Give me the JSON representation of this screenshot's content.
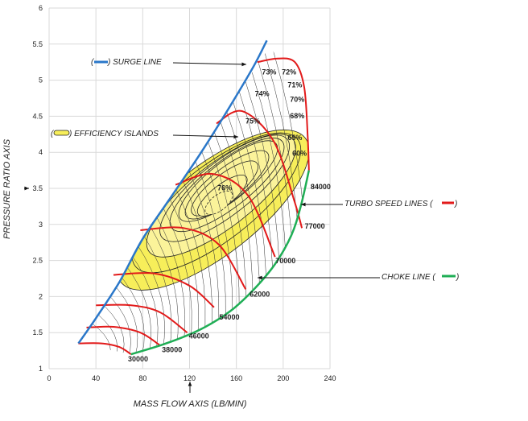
{
  "chart_data": {
    "type": "line",
    "title": "",
    "xlabel": "MASS FLOW AXIS (LB/MIN)",
    "ylabel": "PRESSURE RATIO AXIS",
    "xlim": [
      0,
      240
    ],
    "ylim": [
      1,
      6
    ],
    "x_ticks": [
      "0",
      "40",
      "80",
      "120",
      "160",
      "200",
      "240"
    ],
    "y_ticks": [
      "1",
      "1.5",
      "2",
      "2.5",
      "3",
      "3.5",
      "4",
      "4.5",
      "5",
      "5.5",
      "6"
    ],
    "grid": true,
    "colors": {
      "surge": "#2a77c9",
      "choke": "#1fae55",
      "speed": "#e21a1a",
      "island_fill": "#fbf39a",
      "island_fill_outer": "#f7ee5a"
    },
    "surge_line": [
      [
        25,
        1.35
      ],
      [
        40,
        1.7
      ],
      [
        60,
        2.2
      ],
      [
        80,
        2.8
      ],
      [
        105,
        3.4
      ],
      [
        130,
        4.0
      ],
      [
        155,
        4.65
      ],
      [
        175,
        5.2
      ],
      [
        186,
        5.55
      ]
    ],
    "choke_line": [
      [
        70,
        1.2
      ],
      [
        100,
        1.35
      ],
      [
        130,
        1.55
      ],
      [
        155,
        1.8
      ],
      [
        175,
        2.1
      ],
      [
        193,
        2.45
      ],
      [
        207,
        2.85
      ],
      [
        215,
        3.25
      ],
      [
        222,
        3.75
      ]
    ],
    "speed_lines": [
      {
        "label": "30000",
        "points": [
          [
            25,
            1.35
          ],
          [
            45,
            1.35
          ],
          [
            60,
            1.3
          ],
          [
            70,
            1.2
          ]
        ]
      },
      {
        "label": "38000",
        "points": [
          [
            32,
            1.57
          ],
          [
            55,
            1.58
          ],
          [
            78,
            1.5
          ],
          [
            95,
            1.32
          ]
        ]
      },
      {
        "label": "46000",
        "points": [
          [
            40,
            1.88
          ],
          [
            70,
            1.88
          ],
          [
            95,
            1.78
          ],
          [
            118,
            1.5
          ]
        ]
      },
      {
        "label": "54000",
        "points": [
          [
            55,
            2.3
          ],
          [
            90,
            2.32
          ],
          [
            120,
            2.15
          ],
          [
            141,
            1.85
          ]
        ]
      },
      {
        "label": "62000",
        "points": [
          [
            78,
            2.92
          ],
          [
            115,
            2.95
          ],
          [
            145,
            2.72
          ],
          [
            168,
            2.1
          ]
        ]
      },
      {
        "label": "70000",
        "points": [
          [
            108,
            3.55
          ],
          [
            140,
            3.7
          ],
          [
            170,
            3.4
          ],
          [
            193,
            2.55
          ]
        ]
      },
      {
        "label": "77000",
        "points": [
          [
            143,
            4.4
          ],
          [
            165,
            4.57
          ],
          [
            192,
            4.15
          ],
          [
            210,
            3.3
          ],
          [
            216,
            2.95
          ]
        ]
      },
      {
        "label": "84000",
        "points": [
          [
            178,
            5.25
          ],
          [
            195,
            5.3
          ],
          [
            210,
            5.25
          ],
          [
            218,
            4.9
          ],
          [
            221,
            4.2
          ],
          [
            222,
            3.75
          ]
        ]
      }
    ],
    "efficiency_islands": [
      {
        "label": "60%",
        "center": [
          140,
          3.2
        ],
        "rx": 100,
        "ry": 0.55,
        "angle_deg": 38
      },
      {
        "label": "65%",
        "center": [
          143,
          3.3
        ],
        "rx": 88,
        "ry": 0.45,
        "angle_deg": 38
      },
      {
        "label": "68%",
        "center": [
          147,
          3.4
        ],
        "rx": 78,
        "ry": 0.37,
        "angle_deg": 38
      },
      {
        "label": "70%",
        "center": [
          150,
          3.5
        ],
        "rx": 68,
        "ry": 0.3,
        "angle_deg": 38
      },
      {
        "label": "71%",
        "center": [
          152,
          3.55
        ],
        "rx": 60,
        "ry": 0.25,
        "angle_deg": 38
      },
      {
        "label": "72%",
        "center": [
          153,
          3.6
        ],
        "rx": 52,
        "ry": 0.2,
        "angle_deg": 38
      },
      {
        "label": "73%",
        "center": [
          152,
          3.55
        ],
        "rx": 44,
        "ry": 0.16,
        "angle_deg": 38
      },
      {
        "label": "74%",
        "center": [
          150,
          3.5
        ],
        "rx": 35,
        "ry": 0.12,
        "angle_deg": 38
      },
      {
        "label": "75%",
        "center": [
          148,
          3.4
        ],
        "rx": 26,
        "ry": 0.08,
        "angle_deg": 38
      },
      {
        "label": "76%",
        "center": [
          145,
          3.3
        ],
        "rx": 14,
        "ry": 0.04,
        "angle_deg": 38
      }
    ],
    "efficiency_labels": [
      {
        "text": "73%",
        "x": 188,
        "y": 5.08
      },
      {
        "text": "72%",
        "x": 205,
        "y": 5.08
      },
      {
        "text": "74%",
        "x": 182,
        "y": 4.78
      },
      {
        "text": "71%",
        "x": 210,
        "y": 4.9
      },
      {
        "text": "70%",
        "x": 212,
        "y": 4.7
      },
      {
        "text": "75%",
        "x": 174,
        "y": 4.4
      },
      {
        "text": "68%",
        "x": 212,
        "y": 4.47
      },
      {
        "text": "65%",
        "x": 210,
        "y": 4.17
      },
      {
        "text": "60%",
        "x": 214,
        "y": 3.95
      },
      {
        "text": "76%",
        "x": 150,
        "y": 3.47
      }
    ],
    "speed_label_positions": [
      {
        "text": "30000",
        "x": 76,
        "y": 1.1
      },
      {
        "text": "38000",
        "x": 105,
        "y": 1.23
      },
      {
        "text": "46000",
        "x": 128,
        "y": 1.42
      },
      {
        "text": "54000",
        "x": 154,
        "y": 1.68
      },
      {
        "text": "62000",
        "x": 180,
        "y": 2.0
      },
      {
        "text": "70000",
        "x": 202,
        "y": 2.46
      },
      {
        "text": "77000",
        "x": 227,
        "y": 2.94
      },
      {
        "text": "84000",
        "x": 232,
        "y": 3.49
      }
    ],
    "annotations": [
      {
        "text": "SURGE LINE",
        "key": "surge"
      },
      {
        "text": "EFFICIENCY ISLANDS",
        "key": "islands"
      },
      {
        "text": "TURBO SPEED LINES",
        "key": "speed"
      },
      {
        "text": "CHOKE LINE",
        "key": "choke"
      }
    ]
  }
}
